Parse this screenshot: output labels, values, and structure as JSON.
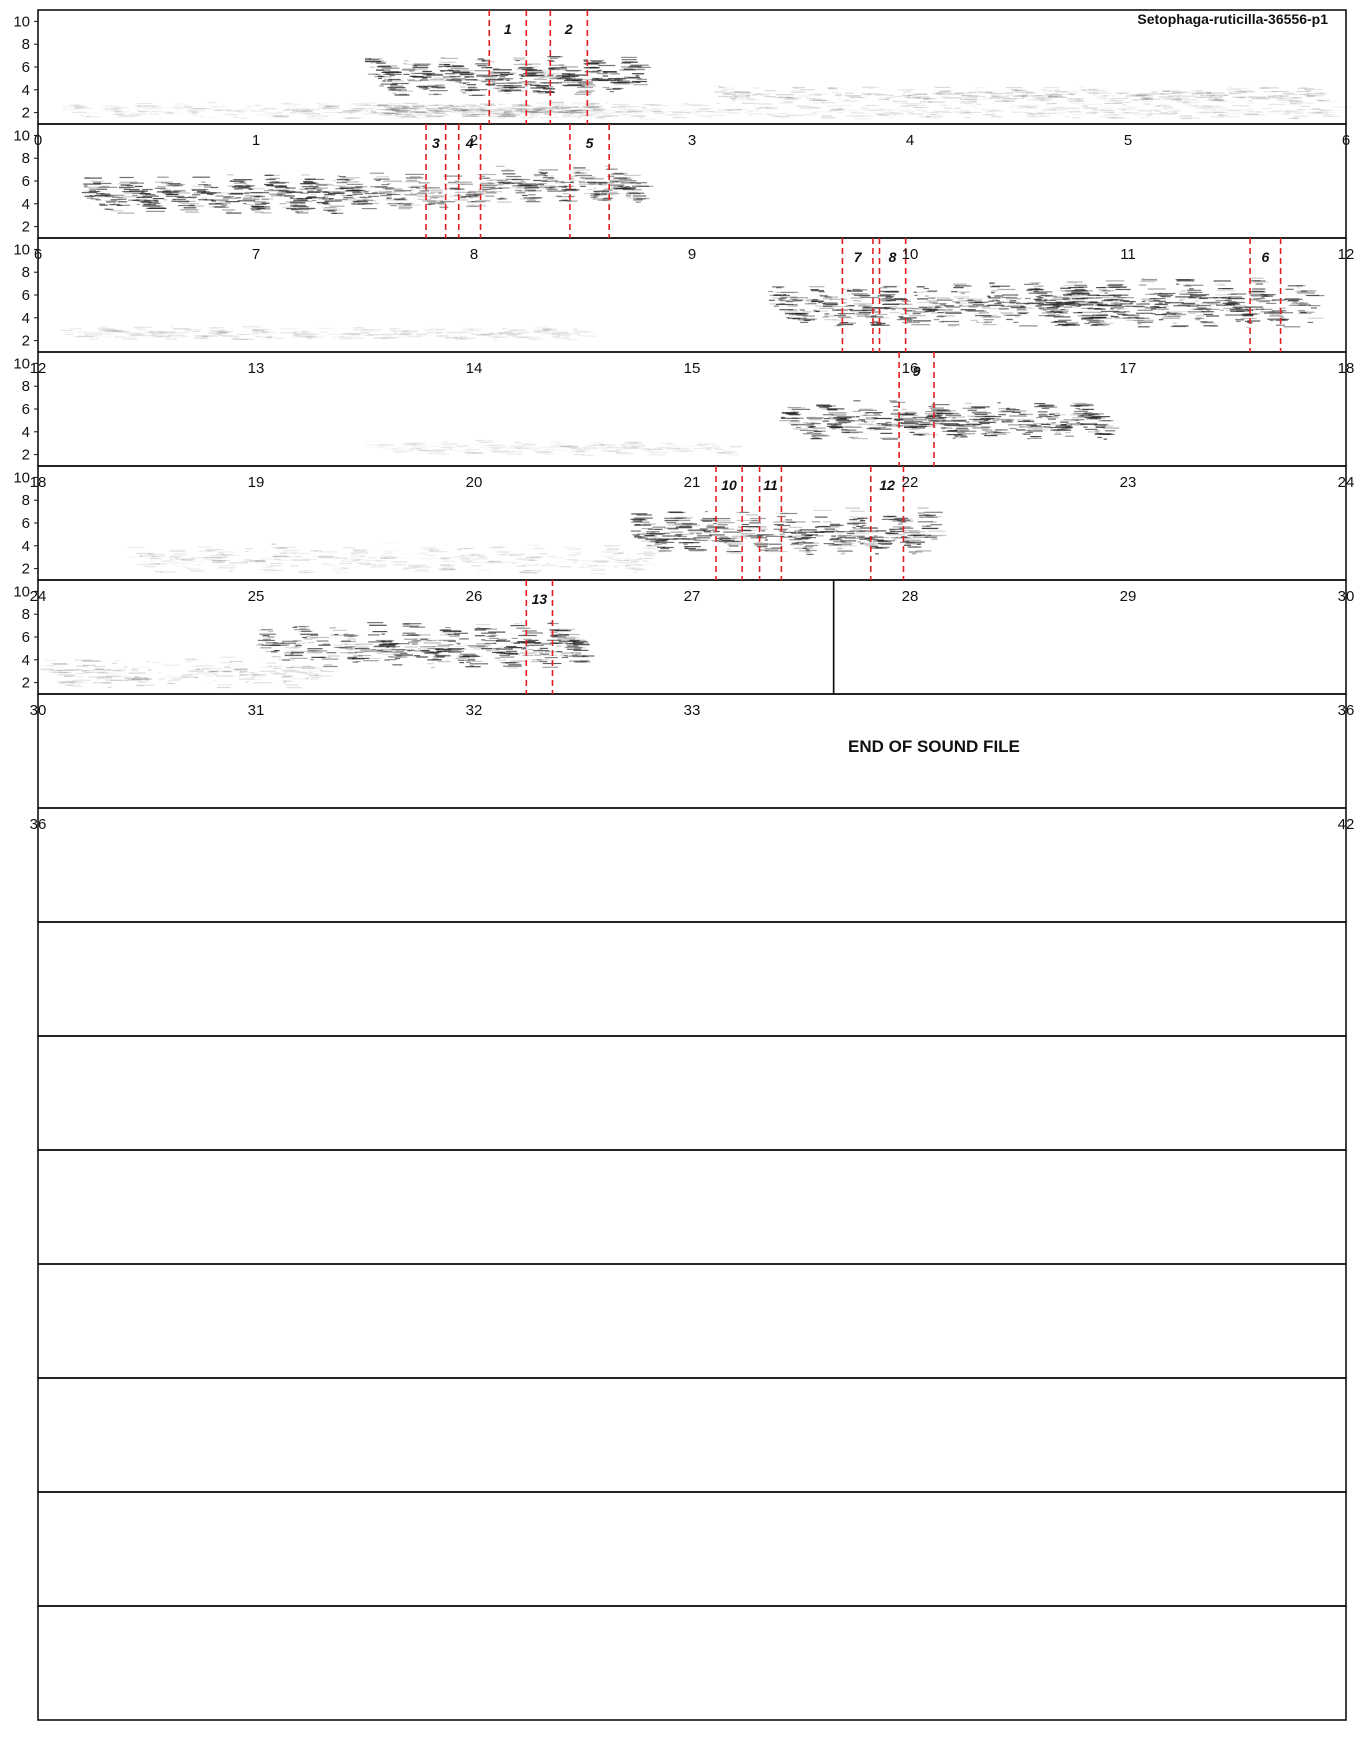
{
  "chart_data": {
    "type": "spectrogram",
    "title": "Setophaga-ruticilla-36556-p1",
    "end_label": "END OF SOUND FILE",
    "rows_total": 15,
    "seconds_per_row": 6,
    "y_ticks": [
      2,
      4,
      6,
      8,
      10
    ],
    "ylim": [
      1,
      11
    ],
    "sound_end_seconds": 33.65,
    "colors": {
      "frame": "#111111",
      "marker": "#e02020",
      "ink": "#222222"
    },
    "x_tick_labels": [
      [
        "0",
        "1",
        "2",
        "3",
        "4",
        "5",
        "6"
      ],
      [
        "6",
        "7",
        "8",
        "9",
        "10",
        "11",
        "12"
      ],
      [
        "12",
        "13",
        "14",
        "15",
        "16",
        "17",
        "18"
      ],
      [
        "18",
        "19",
        "20",
        "21",
        "22",
        "23",
        "24"
      ],
      [
        "24",
        "25",
        "26",
        "27",
        "28",
        "29",
        "30"
      ],
      [
        "30",
        "31",
        "32",
        "33",
        "",
        "",
        "36"
      ],
      [
        "36",
        "",
        "",
        "",
        "",
        "",
        "42"
      ]
    ],
    "selections": [
      {
        "label": "1",
        "start": 2.07,
        "end": 2.24
      },
      {
        "label": "2",
        "start": 2.35,
        "end": 2.52
      },
      {
        "label": "3",
        "start": 7.78,
        "end": 7.87
      },
      {
        "label": "4",
        "start": 7.93,
        "end": 8.03
      },
      {
        "label": "5",
        "start": 8.44,
        "end": 8.62
      },
      {
        "label": "6",
        "start": 17.56,
        "end": 17.7
      },
      {
        "label": "7",
        "start": 15.69,
        "end": 15.83
      },
      {
        "label": "8",
        "start": 15.86,
        "end": 15.98
      },
      {
        "label": "9",
        "start": 21.95,
        "end": 22.11
      },
      {
        "label": "10",
        "start": 27.11,
        "end": 27.23
      },
      {
        "label": "11",
        "start": 27.31,
        "end": 27.41
      },
      {
        "label": "12",
        "start": 27.82,
        "end": 27.97
      },
      {
        "label": "13",
        "start": 32.24,
        "end": 32.36
      }
    ],
    "song_bursts": [
      {
        "start": 1.5,
        "end": 2.75,
        "f_low": 3.5,
        "f_high": 7.0,
        "intensity": 0.85
      },
      {
        "start": 1.5,
        "end": 2.55,
        "f_low": 1.6,
        "f_high": 3.0,
        "intensity": 0.25
      },
      {
        "start": 3.1,
        "end": 5.9,
        "f_low": 2.8,
        "f_high": 4.4,
        "intensity": 0.18
      },
      {
        "start": 0.1,
        "end": 5.95,
        "f_low": 1.5,
        "f_high": 3.0,
        "intensity": 0.12
      },
      {
        "start": 7.35,
        "end": 8.12,
        "f_low": 3.5,
        "f_high": 6.8,
        "intensity": 0.6
      },
      {
        "start": 8.1,
        "end": 8.75,
        "f_low": 4.2,
        "f_high": 7.5,
        "intensity": 0.75
      },
      {
        "start": 6.2,
        "end": 7.45,
        "f_low": 3.2,
        "f_high": 6.6,
        "intensity": 0.8
      },
      {
        "start": 16.55,
        "end": 17.85,
        "f_low": 3.2,
        "f_high": 7.6,
        "intensity": 0.8
      },
      {
        "start": 15.35,
        "end": 16.95,
        "f_low": 3.3,
        "f_high": 7.2,
        "intensity": 0.8
      },
      {
        "start": 12.1,
        "end": 14.5,
        "f_low": 2.1,
        "f_high": 3.3,
        "intensity": 0.12
      },
      {
        "start": 21.4,
        "end": 22.9,
        "f_low": 3.4,
        "f_high": 6.8,
        "intensity": 0.8
      },
      {
        "start": 19.5,
        "end": 21.2,
        "f_low": 2.0,
        "f_high": 3.3,
        "intensity": 0.1
      },
      {
        "start": 26.7,
        "end": 28.1,
        "f_low": 3.3,
        "f_high": 7.4,
        "intensity": 0.8
      },
      {
        "start": 24.4,
        "end": 26.8,
        "f_low": 1.6,
        "f_high": 4.3,
        "intensity": 0.15
      },
      {
        "start": 31.0,
        "end": 32.5,
        "f_low": 3.3,
        "f_high": 7.4,
        "intensity": 0.8
      },
      {
        "start": 30.0,
        "end": 31.3,
        "f_low": 1.6,
        "f_high": 4.3,
        "intensity": 0.2
      }
    ]
  }
}
